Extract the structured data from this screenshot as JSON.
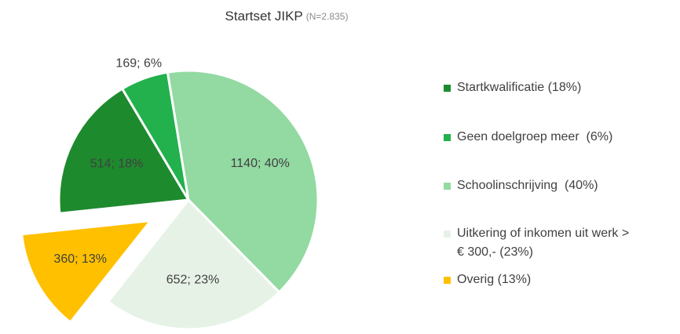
{
  "chart_data": {
    "type": "pie",
    "title": "Startset JIKP",
    "subtitle": "(N=2.835)",
    "categories": [
      "Startkwalificatie (18%)",
      "Geen doelgroep meer  (6%)",
      "Schoolinschrijving  (40%)",
      "Uitkering of inkomen uit werk > € 300,- (23%)",
      "Overig (13%)"
    ],
    "values": [
      514,
      169,
      1140,
      652,
      360
    ],
    "value_labels": [
      "514; 18%",
      "169; 6%",
      "1140; 40%",
      "652; 23%",
      "360; 13%"
    ],
    "colors": [
      "#1e8a2e",
      "#22b14c",
      "#93d9a2",
      "#e7f2e7",
      "#ffc000"
    ],
    "explode": [
      0,
      0,
      0,
      0,
      1
    ],
    "legend": "right"
  }
}
